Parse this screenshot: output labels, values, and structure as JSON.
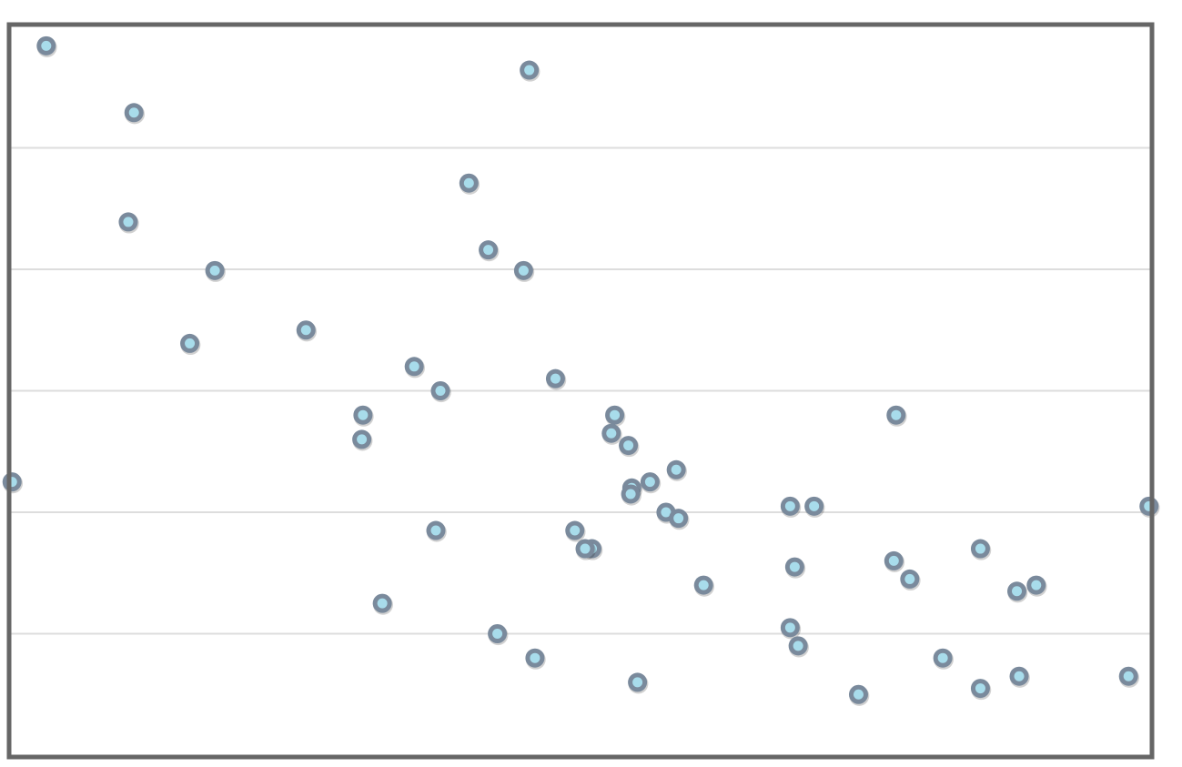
{
  "chart_data": {
    "type": "scatter",
    "title": "",
    "xlabel": "",
    "ylabel": "",
    "xlim": [
      0,
      100
    ],
    "ylim": [
      0,
      60
    ],
    "grid": {
      "horizontal": true,
      "vertical": false
    },
    "y_gridlines": [
      10,
      20,
      30,
      40,
      50
    ],
    "colors": {
      "marker_edge": "#7a8a9c",
      "marker_fill": "#a8dceb",
      "gridline": "#dddddd",
      "frame": "#666666"
    },
    "series": [
      {
        "x": [
          3.1,
          10.8,
          10.3,
          17.9,
          15.7,
          0.1,
          25.9,
          35.4,
          37.7,
          30.9,
          30.8,
          37.3,
          32.6,
          41.9,
          40.2,
          45.5,
          45.0,
          47.8,
          42.7,
          53.0,
          52.7,
          54.2,
          54.5,
          51.0,
          50.4,
          54.4,
          56.1,
          58.4,
          49.5,
          46.0,
          57.5,
          58.6,
          60.8,
          55.0,
          68.4,
          70.5,
          68.8,
          68.4,
          69.1,
          74.4,
          77.7,
          77.5,
          78.9,
          81.8,
          85.1,
          88.3,
          90.0,
          88.5,
          85.1,
          98.1,
          99.9
        ],
        "y": [
          58.4,
          52.9,
          43.9,
          39.9,
          33.9,
          22.5,
          35.0,
          32.0,
          30.0,
          28.0,
          26.0,
          18.5,
          12.5,
          41.6,
          47.1,
          56.4,
          39.9,
          31.0,
          10.0,
          28.0,
          26.5,
          25.5,
          22.0,
          17.0,
          17.0,
          21.5,
          22.5,
          23.5,
          18.5,
          8.0,
          20.0,
          19.5,
          14.0,
          6.0,
          20.5,
          20.5,
          15.5,
          10.5,
          9.0,
          5.0,
          28.0,
          16.0,
          14.5,
          8.0,
          17.0,
          13.5,
          14.0,
          6.5,
          5.5,
          6.5,
          20.5
        ]
      }
    ]
  }
}
